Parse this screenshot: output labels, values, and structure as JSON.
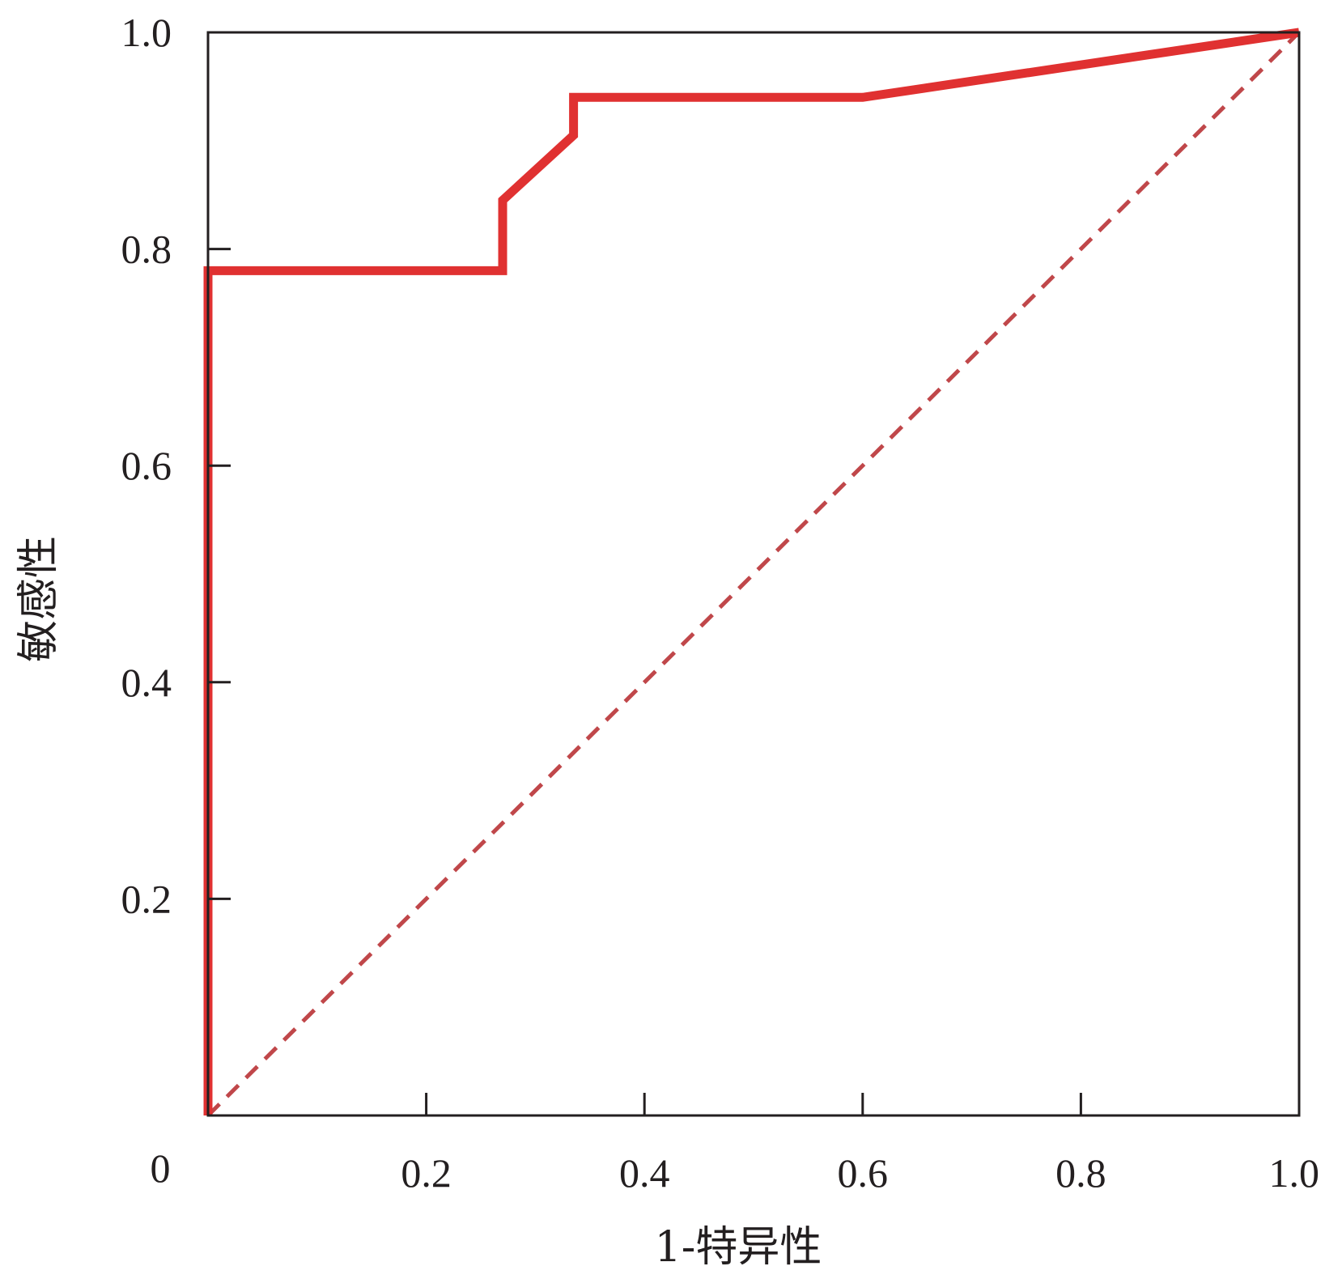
{
  "chart_data": {
    "type": "line",
    "title": "",
    "xlabel": "1-特异性",
    "ylabel": "敏感性",
    "xlim": [
      0,
      1.0
    ],
    "ylim": [
      0,
      1.0
    ],
    "x_ticks": [
      {
        "value": 0,
        "label": "0"
      },
      {
        "value": 0.2,
        "label": "0.2"
      },
      {
        "value": 0.4,
        "label": "0.4"
      },
      {
        "value": 0.6,
        "label": "0.6"
      },
      {
        "value": 0.8,
        "label": "0.8"
      },
      {
        "value": 1.0,
        "label": "1.0"
      }
    ],
    "y_ticks": [
      {
        "value": 0.2,
        "label": "0.2"
      },
      {
        "value": 0.4,
        "label": "0.4"
      },
      {
        "value": 0.6,
        "label": "0.6"
      },
      {
        "value": 0.8,
        "label": "0.8"
      },
      {
        "value": 1.0,
        "label": "1.0"
      }
    ],
    "grid": false,
    "legend": "none",
    "series": [
      {
        "style": "solid",
        "color": "#e03131",
        "x": [
          0,
          0,
          0.27,
          0.27,
          0.335,
          0.335,
          0.6,
          1.0
        ],
        "y": [
          0,
          0.78,
          0.78,
          0.845,
          0.905,
          0.94,
          0.94,
          1.0
        ]
      },
      {
        "style": "dashed",
        "color": "#c0474a",
        "x": [
          0,
          1.0
        ],
        "y": [
          0,
          1.0
        ]
      }
    ]
  }
}
